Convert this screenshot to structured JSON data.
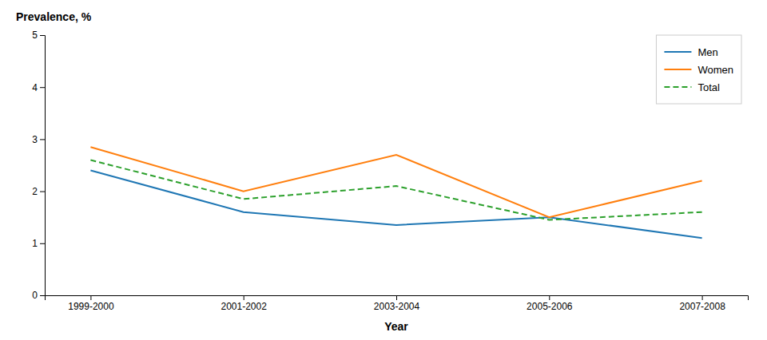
{
  "chart_data": {
    "type": "line",
    "ylabel": "Prevalence, %",
    "xlabel": "Year",
    "categories": [
      "1999-2000",
      "2001-2002",
      "2003-2004",
      "2005-2006",
      "2007-2008"
    ],
    "series": [
      {
        "name": "Men",
        "values": [
          2.4,
          1.6,
          1.35,
          1.5,
          1.1
        ],
        "line_style": "solid"
      },
      {
        "name": "Women",
        "values": [
          2.85,
          2.0,
          2.7,
          1.5,
          2.2
        ],
        "line_style": "solid"
      },
      {
        "name": "Total",
        "values": [
          2.6,
          1.85,
          2.1,
          1.45,
          1.6
        ],
        "line_style": "dashed"
      }
    ],
    "ylim": [
      0,
      5
    ],
    "yticks": [
      0,
      1,
      2,
      3,
      4,
      5
    ],
    "grid": false,
    "legend": "upper right"
  }
}
